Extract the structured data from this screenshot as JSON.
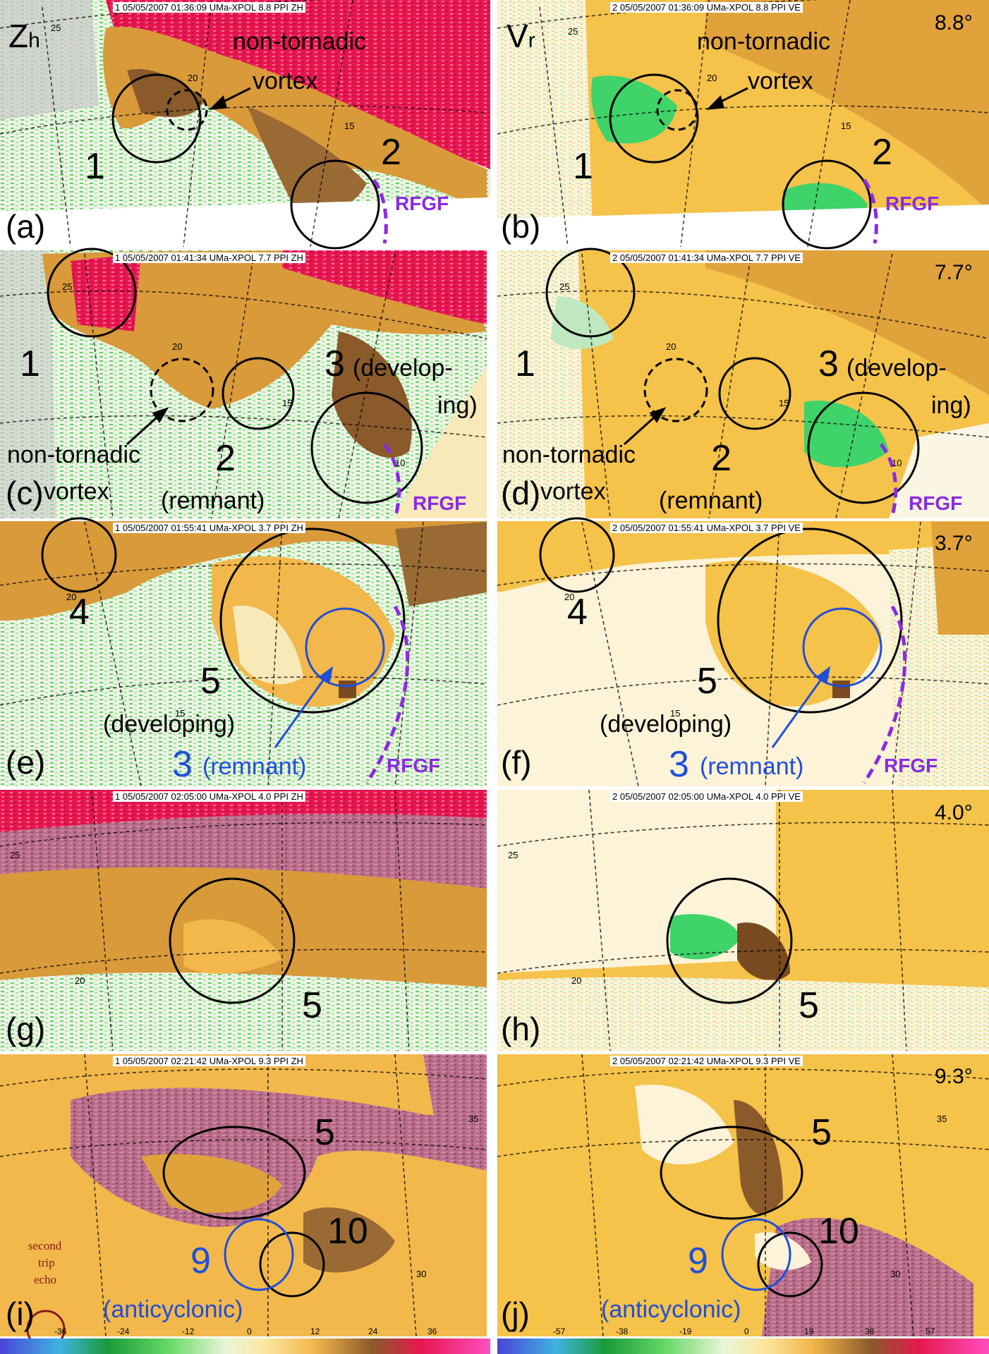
{
  "colors": {
    "zh_low": "#c9c9c9",
    "zh_green": "#5fd35f",
    "zh_light": "#f7e9b8",
    "zh_yellow": "#f2b84b",
    "zh_orange": "#d99a3a",
    "zh_brown": "#8a5a2b",
    "zh_red": "#e8174f",
    "zh_magenta": "#c85a8c",
    "vr_green": "#3fd36a",
    "vr_yellow": "#f5c24a",
    "vr_orange": "#e0a23b",
    "vr_white": "#fbf6e4",
    "circle_black": "#000000",
    "circle_blue": "#1f4fd8",
    "rfgf_purple": "#8a2be2",
    "second_trip": "#8b1a1a"
  },
  "panels": [
    {
      "id": "a",
      "header": "1  05/05/2007  01:36:09  UMa-XPOL  8.8  PPI  ZH",
      "letter": "(a)",
      "field_main": "Z",
      "field_sub": "h",
      "range_labels": [
        "25",
        "20",
        "15"
      ],
      "labels": [
        "non-tornadic",
        "vortex",
        "1",
        "2",
        "RFGF"
      ]
    },
    {
      "id": "b",
      "header": "2  05/05/2007  01:36:09  UMa-XPOL  8.8  PPI  VE",
      "letter": "(b)",
      "field_main": "V",
      "field_sub": "r",
      "elevation": "8.8°",
      "range_labels": [
        "25",
        "20",
        "15"
      ],
      "labels": [
        "non-tornadic",
        "vortex",
        "1",
        "2",
        "RFGF"
      ]
    },
    {
      "id": "c",
      "header": "1  05/05/2007  01:41:34  UMa-XPOL  7.7  PPI  ZH",
      "letter": "(c)",
      "range_labels": [
        "25",
        "20",
        "15",
        "10"
      ],
      "labels": [
        "1",
        "3",
        "(develop-",
        "ing)",
        "non-tornadic",
        "vortex",
        "2",
        "(remnant)",
        "RFGF"
      ]
    },
    {
      "id": "d",
      "header": "2  05/05/2007  01:41:34  UMa-XPOL  7.7  PPI  VE",
      "letter": "(d)",
      "elevation": "7.7°",
      "range_labels": [
        "25",
        "20",
        "15",
        "10"
      ],
      "labels": [
        "1",
        "3",
        "(develop-",
        "ing)",
        "non-tornadic",
        "vortex",
        "2",
        "(remnant)",
        "RFGF"
      ]
    },
    {
      "id": "e",
      "header": "1  05/05/2007  01:55:41  UMa-XPOL  3.7  PPI  ZH",
      "letter": "(e)",
      "range_labels": [
        "20",
        "15"
      ],
      "labels": [
        "4",
        "5",
        "(developing)",
        "3",
        "(remnant)",
        "RFGF"
      ]
    },
    {
      "id": "f",
      "header": "2  05/05/2007  01:55:41  UMa-XPOL  3.7  PPI  VE",
      "letter": "(f)",
      "elevation": "3.7°",
      "range_labels": [
        "20",
        "15"
      ],
      "labels": [
        "4",
        "5",
        "(developing)",
        "3",
        "(remnant)",
        "RFGF"
      ]
    },
    {
      "id": "g",
      "header": "1  05/05/2007  02:05:00  UMa-XPOL  4.0  PPI  ZH",
      "letter": "(g)",
      "range_labels": [
        "25",
        "20"
      ],
      "labels": [
        "5"
      ]
    },
    {
      "id": "h",
      "header": "2  05/05/2007  02:05:00  UMa-XPOL  4.0  PPI  VE",
      "letter": "(h)",
      "elevation": "4.0°",
      "range_labels": [
        "25",
        "20"
      ],
      "labels": [
        "5"
      ]
    },
    {
      "id": "i",
      "header": "1  05/05/2007  02:21:42  UMa-XPOL  9.3  PPI  ZH",
      "letter": "(i)",
      "range_labels": [
        "35",
        "30"
      ],
      "labels": [
        "5",
        "10",
        "9",
        "(anticyclonic)",
        "second",
        "trip",
        "echo"
      ]
    },
    {
      "id": "j",
      "header": "2  05/05/2007  02:21:42  UMa-XPOL  9.3  PPI  VE",
      "letter": "(j)",
      "elevation": "9.3°",
      "range_labels": [
        "35",
        "30"
      ],
      "labels": [
        "5",
        "10",
        "9",
        "(anticyclonic)"
      ]
    }
  ],
  "colorbars": {
    "zh_ticks": [
      "-36",
      "-24",
      "-12",
      "0",
      "12",
      "24",
      "36"
    ],
    "ve_ticks": [
      "-57",
      "-38",
      "-19",
      "0",
      "19",
      "38",
      "57"
    ]
  }
}
